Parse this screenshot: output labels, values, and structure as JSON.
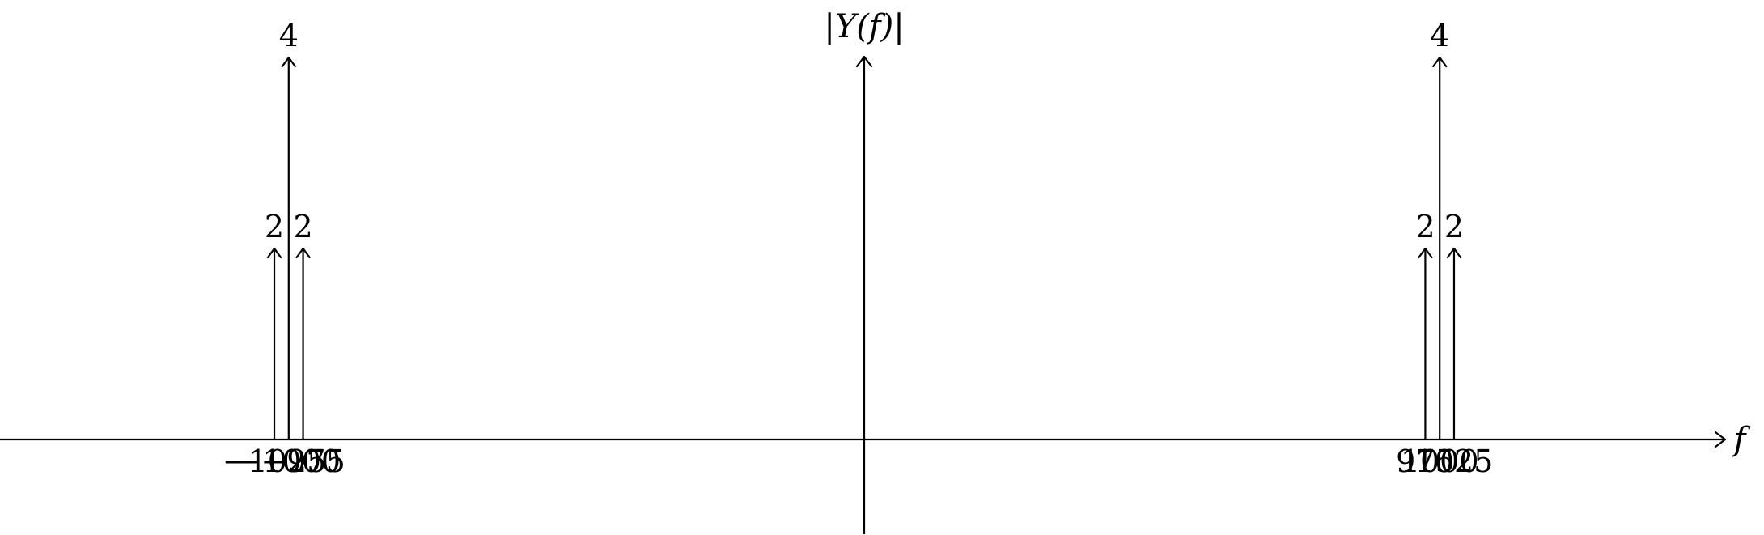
{
  "chart_data": {
    "type": "stem",
    "title": "",
    "xlabel": "f",
    "ylabel": "|Y(f)|",
    "xlim": [
      -1340,
      1340
    ],
    "ylim": [
      0,
      4
    ],
    "grid": false,
    "legend": "none",
    "points": [
      {
        "x": -1025,
        "y": 2,
        "x_label": "−1025",
        "y_label": "2"
      },
      {
        "x": -1000,
        "y": 4,
        "x_label": "−1000",
        "y_label": "4"
      },
      {
        "x": -975,
        "y": 2,
        "x_label": "−975",
        "y_label": "2"
      },
      {
        "x": 975,
        "y": 2,
        "x_label": "975",
        "y_label": "2"
      },
      {
        "x": 1000,
        "y": 4,
        "x_label": "1000",
        "y_label": "4"
      },
      {
        "x": 1025,
        "y": 2,
        "x_label": "1025",
        "y_label": "2"
      }
    ]
  }
}
